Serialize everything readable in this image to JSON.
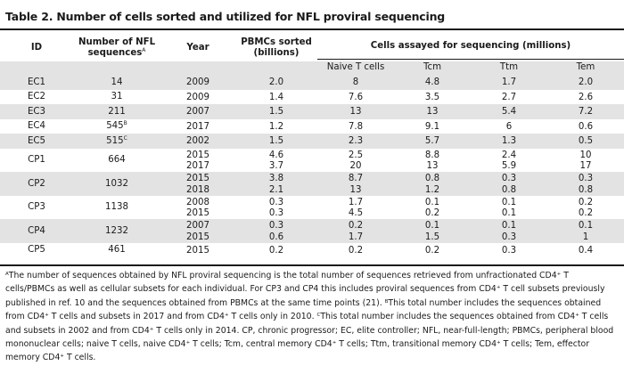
{
  "title": "Table 2. Number of cells sorted and utilized for NFL proviral sequencing",
  "headers": {
    "id": "ID",
    "nfl_line1": "Number of NFL",
    "nfl_line2": "sequences",
    "nfl_sup": "A",
    "year": "Year",
    "pbmc_line1": "PBMCs sorted",
    "pbmc_line2": "(billions)",
    "cells_assayed": "Cells assayed for sequencing (millions)",
    "sub": [
      "Naive T cells",
      "Tcm",
      "Ttm",
      "Tem"
    ]
  },
  "rows": [
    {
      "id": "EC1",
      "nfl": "14",
      "nfl_sup": "",
      "shaded": true,
      "entries": [
        {
          "year": "2009",
          "pbmc": "2.0",
          "naive": "8",
          "tcm": "4.8",
          "ttm": "1.7",
          "tem": "2.0"
        }
      ]
    },
    {
      "id": "EC2",
      "nfl": "31",
      "nfl_sup": "",
      "shaded": false,
      "entries": [
        {
          "year": "2009",
          "pbmc": "1.4",
          "naive": "7.6",
          "tcm": "3.5",
          "ttm": "2.7",
          "tem": "2.6"
        }
      ]
    },
    {
      "id": "EC3",
      "nfl": "211",
      "nfl_sup": "",
      "shaded": true,
      "entries": [
        {
          "year": "2007",
          "pbmc": "1.5",
          "naive": "13",
          "tcm": "13",
          "ttm": "5.4",
          "tem": "7.2"
        }
      ]
    },
    {
      "id": "EC4",
      "nfl": "545",
      "nfl_sup": "B",
      "shaded": false,
      "entries": [
        {
          "year": "2017",
          "pbmc": "1.2",
          "naive": "7.8",
          "tcm": "9.1",
          "ttm": "6",
          "tem": "0.6"
        }
      ]
    },
    {
      "id": "EC5",
      "nfl": "515",
      "nfl_sup": "C",
      "shaded": true,
      "entries": [
        {
          "year": "2002",
          "pbmc": "1.5",
          "naive": "2.3",
          "tcm": "5.7",
          "ttm": "1.3",
          "tem": "0.5"
        }
      ]
    },
    {
      "id": "CP1",
      "nfl": "664",
      "nfl_sup": "",
      "shaded": false,
      "entries": [
        {
          "year": "2015",
          "pbmc": "4.6",
          "naive": "2.5",
          "tcm": "8.8",
          "ttm": "2.4",
          "tem": "10"
        },
        {
          "year": "2017",
          "pbmc": "3.7",
          "naive": "20",
          "tcm": "13",
          "ttm": "5.9",
          "tem": "17"
        }
      ]
    },
    {
      "id": "CP2",
      "nfl": "1032",
      "nfl_sup": "",
      "shaded": true,
      "entries": [
        {
          "year": "2015",
          "pbmc": "3.8",
          "naive": "8.7",
          "tcm": "0.8",
          "ttm": "0.3",
          "tem": "0.3"
        },
        {
          "year": "2018",
          "pbmc": "2.1",
          "naive": "13",
          "tcm": "1.2",
          "ttm": "0.8",
          "tem": "0.8"
        }
      ]
    },
    {
      "id": "CP3",
      "nfl": "1138",
      "nfl_sup": "",
      "shaded": false,
      "entries": [
        {
          "year": "2008",
          "pbmc": "0.3",
          "naive": "1.7",
          "tcm": "0.1",
          "ttm": "0.1",
          "tem": "0.2"
        },
        {
          "year": "2015",
          "pbmc": "0.3",
          "naive": "4.5",
          "tcm": "0.2",
          "ttm": "0.1",
          "tem": "0.2"
        }
      ]
    },
    {
      "id": "CP4",
      "nfl": "1232",
      "nfl_sup": "",
      "shaded": true,
      "entries": [
        {
          "year": "2007",
          "pbmc": "0.3",
          "naive": "0.2",
          "tcm": "0.1",
          "ttm": "0.1",
          "tem": "0.1"
        },
        {
          "year": "2015",
          "pbmc": "0.6",
          "naive": "1.7",
          "tcm": "1.5",
          "ttm": "0.3",
          "tem": "1"
        }
      ]
    },
    {
      "id": "CP5",
      "nfl": "461",
      "nfl_sup": "",
      "shaded": false,
      "entries": [
        {
          "year": "2015",
          "pbmc": "0.2",
          "naive": "0.2",
          "tcm": "0.2",
          "ttm": "0.3",
          "tem": "0.4"
        }
      ]
    }
  ],
  "footnote": {
    "sup_a": "A",
    "text_a1": "The number of sequences obtained by NFL proviral sequencing is the total number of sequences retrieved from unfractionated CD4",
    "sup_plus": "+",
    "text_a2": " T cells/PBMCs as well as cellular subsets for each individual. For CP3 and CP4 this includes proviral sequences from CD4",
    "text_a3": " T cell subsets previously published in ref. 10 and the sequences obtained from PBMCs at the same time points (21). ",
    "sup_b": "B",
    "text_b1": "This total number includes the sequences obtained from CD4",
    "text_b2": " T cells and subsets in 2017 and from CD4",
    "text_b3": " T cells only in 2010. ",
    "sup_c": "C",
    "text_c1": "This total number includes the sequences obtained from CD4",
    "text_c2": " T cells and subsets in 2002 and from CD4",
    "text_c3": " T cells only in 2014. CP, chronic progressor; EC, elite controller; NFL, near-full-length; PBMCs, peripheral blood mononuclear cells; naive T cells, naive CD4",
    "text_c4": " T cells; Tcm, central memory CD4",
    "text_c5": " T cells; Ttm, transitional memory CD4",
    "text_c6": " T cells; Tem, effector memory CD4",
    "text_c7": " T cells."
  }
}
